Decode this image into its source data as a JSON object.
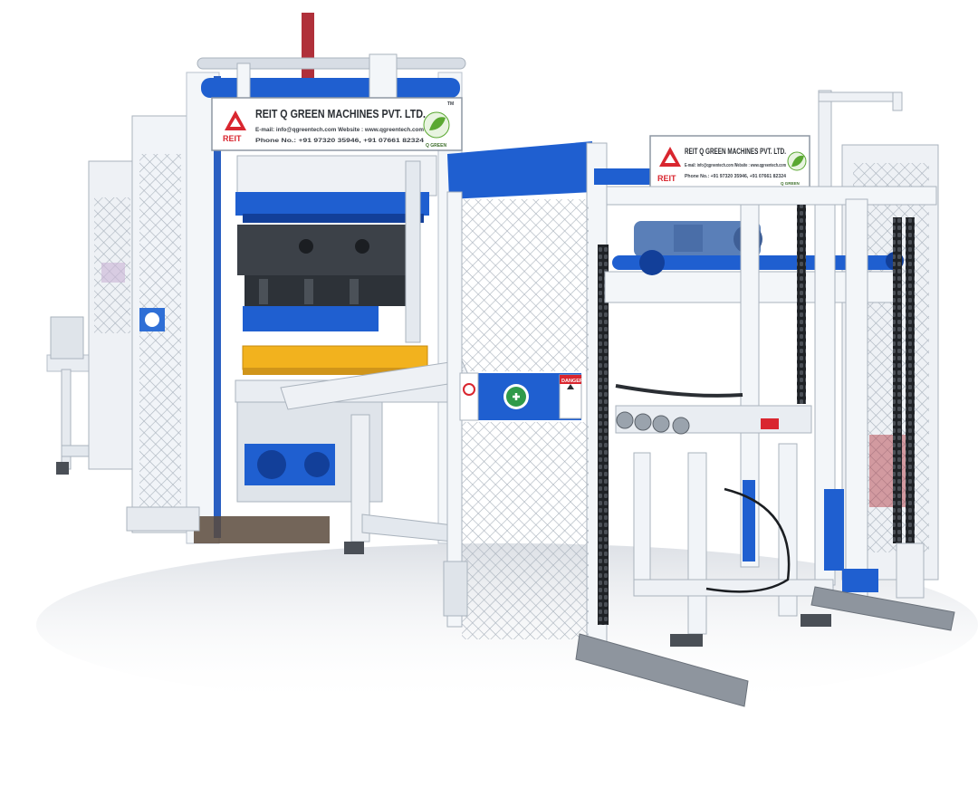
{
  "colors": {
    "background": "#ffffff",
    "frame_white": "#f1f4f8",
    "frame_shade": "#c9d1dc",
    "machine_blue": "#1f5fd0",
    "dark_blue": "#123f99",
    "mesh": "#b8c0c8",
    "dark_steel": "#3c4148",
    "pallet_yellow": "#f2b21e",
    "chain": "#202326",
    "red_post": "#b0303a",
    "logo_red": "#d9262f",
    "logo_green": "#5aa832",
    "safety_green": "#2f9a4a"
  },
  "signs": {
    "left": {
      "company": "REIT Q GREEN MACHINES PVT. LTD.",
      "contact_line": "E-mail: info@qgreentech.com   Website : www.qgreentech.com",
      "phone_line": "Phone No.: +91 97320 35946,  +91 07661 82324",
      "brand": "REIT",
      "sub_brand": "Q GREEN",
      "tm": "TM"
    },
    "right": {
      "company": "REIT Q GREEN MACHINES PVT. LTD.",
      "contact_line": "E-mail: info@qgreentech.com   Website : www.qgreentech.com",
      "phone_line": "Phone No.: +91 97320 35946,  +91 07661 82324",
      "brand": "REIT",
      "sub_brand": "Q GREEN"
    }
  },
  "danger_label": "DANGER"
}
